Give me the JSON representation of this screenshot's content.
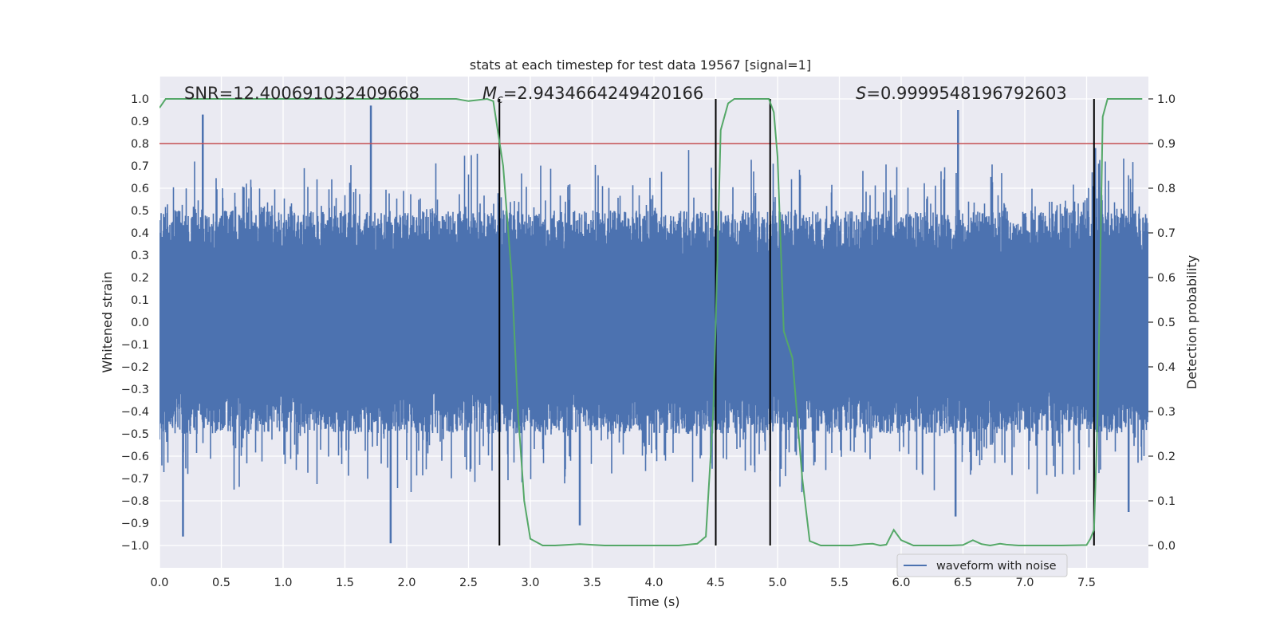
{
  "chart_data": {
    "type": "line",
    "title": "stats at each timestep for test data 19567 [signal=1]",
    "xlabel": "Time (s)",
    "ylabel_left": "Whitened strain",
    "ylabel_right": "Detection probability",
    "xlim": [
      0.0,
      8.0
    ],
    "ylim_left": [
      -1.1,
      1.1
    ],
    "ylim_right": [
      -0.05,
      1.05
    ],
    "xticks": [
      0.0,
      0.5,
      1.0,
      1.5,
      2.0,
      2.5,
      3.0,
      3.5,
      4.0,
      4.5,
      5.0,
      5.5,
      6.0,
      6.5,
      7.0,
      7.5
    ],
    "xtick_labels": [
      "0.0",
      "0.5",
      "1.0",
      "1.5",
      "2.0",
      "2.5",
      "3.0",
      "3.5",
      "4.0",
      "4.5",
      "5.0",
      "5.5",
      "6.0",
      "6.5",
      "7.0",
      "7.5"
    ],
    "yticks_left": [
      1.0,
      0.9,
      0.8,
      0.7,
      0.6,
      0.5,
      0.4,
      0.3,
      0.2,
      0.1,
      0.0,
      -0.1,
      -0.2,
      -0.3,
      -0.4,
      -0.5,
      -0.6,
      -0.7,
      -0.8,
      -0.9,
      -1.0
    ],
    "ytick_labels_left": [
      "1.0",
      "0.9",
      "0.8",
      "0.7",
      "0.6",
      "0.5",
      "0.4",
      "0.3",
      "0.2",
      "0.1",
      "0.0",
      "−0.1",
      "−0.2",
      "−0.3",
      "−0.4",
      "−0.5",
      "−0.6",
      "−0.7",
      "−0.8",
      "−0.9",
      "−1.0"
    ],
    "yticks_right": [
      1.0,
      0.9,
      0.8,
      0.7,
      0.6,
      0.5,
      0.4,
      0.3,
      0.2,
      0.1,
      0.0
    ],
    "ytick_labels_right": [
      "1.0",
      "0.9",
      "0.8",
      "0.7",
      "0.6",
      "0.5",
      "0.4",
      "0.3",
      "0.2",
      "0.1",
      "0.0"
    ],
    "annotations": {
      "snr": "SNR=12.400691032409668",
      "mc_symbol": "M",
      "mc_subscript": "c",
      "mc_value": "=2.9434664249420166",
      "s_symbol": "S",
      "s_value": "=0.9999548196792603"
    },
    "legend": {
      "label": "waveform with noise",
      "position": "lower-right"
    },
    "threshold_line": {
      "value_right": 0.9,
      "color": "#c44e52"
    },
    "vertical_lines": [
      2.75,
      4.5,
      4.94,
      7.56
    ],
    "series": [
      {
        "name": "waveform with noise",
        "axis": "left",
        "color": "#4c72b0",
        "style": "dense noise",
        "spikes": [
          [
            0.35,
            0.93
          ],
          [
            1.71,
            0.97
          ],
          [
            0.19,
            -0.96
          ],
          [
            1.87,
            -0.99
          ],
          [
            3.4,
            -0.91
          ],
          [
            6.44,
            -0.87
          ],
          [
            7.57,
            0.78
          ],
          [
            6.46,
            0.95
          ],
          [
            7.84,
            -0.85
          ]
        ]
      },
      {
        "name": "detection probability",
        "axis": "right",
        "color": "#55a868",
        "x": [
          0.0,
          0.05,
          0.1,
          0.5,
          1.0,
          1.5,
          2.0,
          2.4,
          2.5,
          2.65,
          2.7,
          2.78,
          2.85,
          2.9,
          2.95,
          3.0,
          3.1,
          3.2,
          3.4,
          3.6,
          3.8,
          4.0,
          4.2,
          4.35,
          4.42,
          4.48,
          4.5,
          4.54,
          4.6,
          4.65,
          4.7,
          4.85,
          4.93,
          4.97,
          5.0,
          5.05,
          5.12,
          5.2,
          5.26,
          5.35,
          5.5,
          5.6,
          5.7,
          5.77,
          5.83,
          5.88,
          5.94,
          6.0,
          6.1,
          6.2,
          6.3,
          6.4,
          6.5,
          6.58,
          6.65,
          6.72,
          6.8,
          6.85,
          6.95,
          7.1,
          7.3,
          7.5,
          7.53,
          7.56,
          7.59,
          7.63,
          7.67,
          7.75,
          7.85,
          7.95
        ],
        "y": [
          0.98,
          1.0,
          1.0,
          1.0,
          1.0,
          1.0,
          1.0,
          1.0,
          0.995,
          1.0,
          0.995,
          0.85,
          0.6,
          0.3,
          0.1,
          0.015,
          0.0,
          0.0,
          0.003,
          0.0,
          0.0,
          0.0,
          0.0,
          0.004,
          0.02,
          0.3,
          0.5,
          0.93,
          0.99,
          1.0,
          1.0,
          1.0,
          1.0,
          0.97,
          0.87,
          0.48,
          0.42,
          0.15,
          0.01,
          0.0,
          0.0,
          0.0,
          0.003,
          0.004,
          0.0,
          0.002,
          0.035,
          0.012,
          0.0,
          0.0,
          0.0,
          0.0,
          0.001,
          0.012,
          0.003,
          0.0,
          0.004,
          0.002,
          0.0,
          0.0,
          0.0,
          0.001,
          0.015,
          0.035,
          0.3,
          0.96,
          1.0,
          1.0,
          1.0,
          1.0
        ]
      }
    ]
  }
}
